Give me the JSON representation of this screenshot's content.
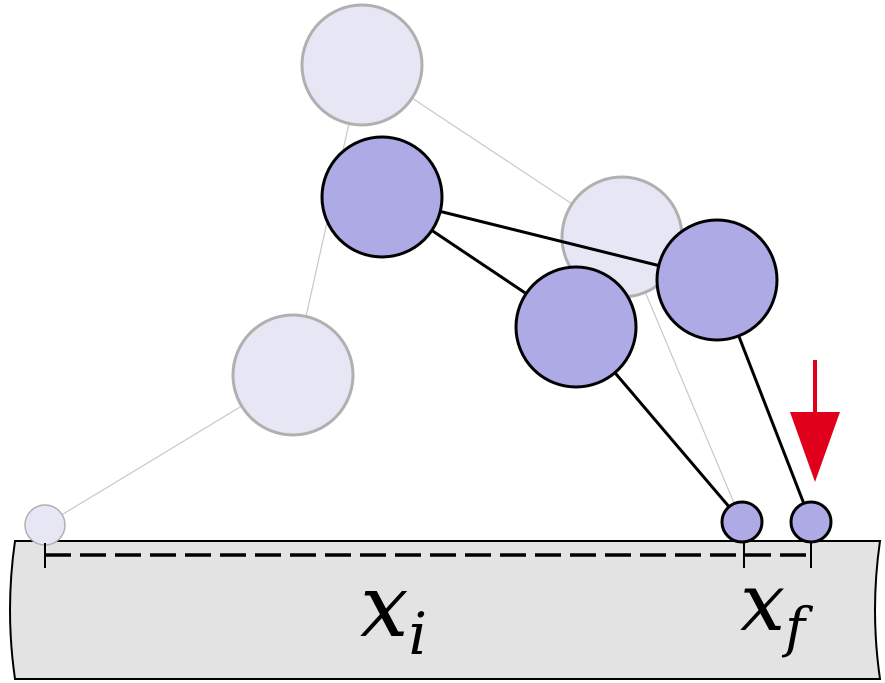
{
  "labels": {
    "initial": {
      "var": "x",
      "sub": "i"
    },
    "final": {
      "var": "x",
      "sub": "f"
    }
  },
  "colors": {
    "ghost_fill": "#e6e6f5",
    "ghost_stroke": "#b0b0b0",
    "ghost_link": "#c8c8c8",
    "body_fill": "#aeaae6",
    "body_stroke": "#000000",
    "ground_fill": "#e3e3e3",
    "ground_stroke": "#000000",
    "arrow": "#e0001b"
  }
}
